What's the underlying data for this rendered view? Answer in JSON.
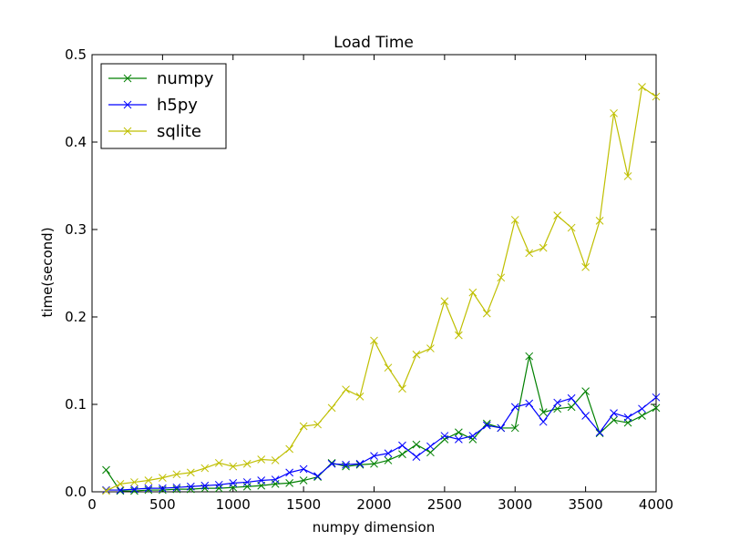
{
  "chart_data": {
    "type": "line",
    "title": "Load Time",
    "xlabel": "numpy dimension",
    "ylabel": "time(second)",
    "xlim": [
      0,
      4000
    ],
    "ylim": [
      0,
      0.5
    ],
    "xticks": [
      0,
      500,
      1000,
      1500,
      2000,
      2500,
      3000,
      3500,
      4000
    ],
    "xtick_labels": [
      "0",
      "500",
      "1000",
      "1500",
      "2000",
      "2500",
      "3000",
      "3500",
      "4000"
    ],
    "yticks": [
      0,
      0.1,
      0.2,
      0.3,
      0.4,
      0.5
    ],
    "ytick_labels": [
      "0.0",
      "0.1",
      "0.2",
      "0.3",
      "0.4",
      "0.5"
    ],
    "grid": false,
    "legend_position": "top-left",
    "marker": "x",
    "x": [
      100,
      200,
      300,
      400,
      500,
      600,
      700,
      800,
      900,
      1000,
      1100,
      1200,
      1300,
      1400,
      1500,
      1600,
      1700,
      1800,
      1900,
      2000,
      2100,
      2200,
      2300,
      2400,
      2500,
      2600,
      2700,
      2800,
      2900,
      3000,
      3100,
      3200,
      3300,
      3400,
      3500,
      3600,
      3700,
      3800,
      3900,
      4000
    ],
    "series": [
      {
        "name": "numpy",
        "color": "#008000",
        "values": [
          0.025,
          0.001,
          0.001,
          0.002,
          0.002,
          0.003,
          0.003,
          0.004,
          0.004,
          0.005,
          0.006,
          0.007,
          0.009,
          0.01,
          0.013,
          0.017,
          0.033,
          0.029,
          0.031,
          0.032,
          0.036,
          0.043,
          0.054,
          0.045,
          0.06,
          0.068,
          0.06,
          0.078,
          0.073,
          0.073,
          0.155,
          0.091,
          0.095,
          0.097,
          0.115,
          0.067,
          0.082,
          0.079,
          0.087,
          0.096
        ]
      },
      {
        "name": "h5py",
        "color": "#0000ff",
        "values": [
          0.002,
          0.002,
          0.003,
          0.004,
          0.004,
          0.005,
          0.006,
          0.007,
          0.008,
          0.01,
          0.011,
          0.013,
          0.014,
          0.022,
          0.026,
          0.018,
          0.032,
          0.031,
          0.032,
          0.041,
          0.044,
          0.053,
          0.04,
          0.052,
          0.064,
          0.06,
          0.064,
          0.076,
          0.073,
          0.097,
          0.101,
          0.08,
          0.102,
          0.107,
          0.087,
          0.068,
          0.09,
          0.085,
          0.095,
          0.108
        ]
      },
      {
        "name": "sqlite",
        "color": "#bfbf00",
        "values": [
          0.001,
          0.009,
          0.011,
          0.013,
          0.016,
          0.02,
          0.022,
          0.027,
          0.033,
          0.029,
          0.032,
          0.037,
          0.036,
          0.049,
          0.075,
          0.077,
          0.096,
          0.117,
          0.109,
          0.173,
          0.142,
          0.118,
          0.157,
          0.164,
          0.218,
          0.179,
          0.228,
          0.204,
          0.245,
          0.311,
          0.273,
          0.279,
          0.316,
          0.302,
          0.257,
          0.31,
          0.433,
          0.361,
          0.463,
          0.452
        ]
      }
    ]
  }
}
